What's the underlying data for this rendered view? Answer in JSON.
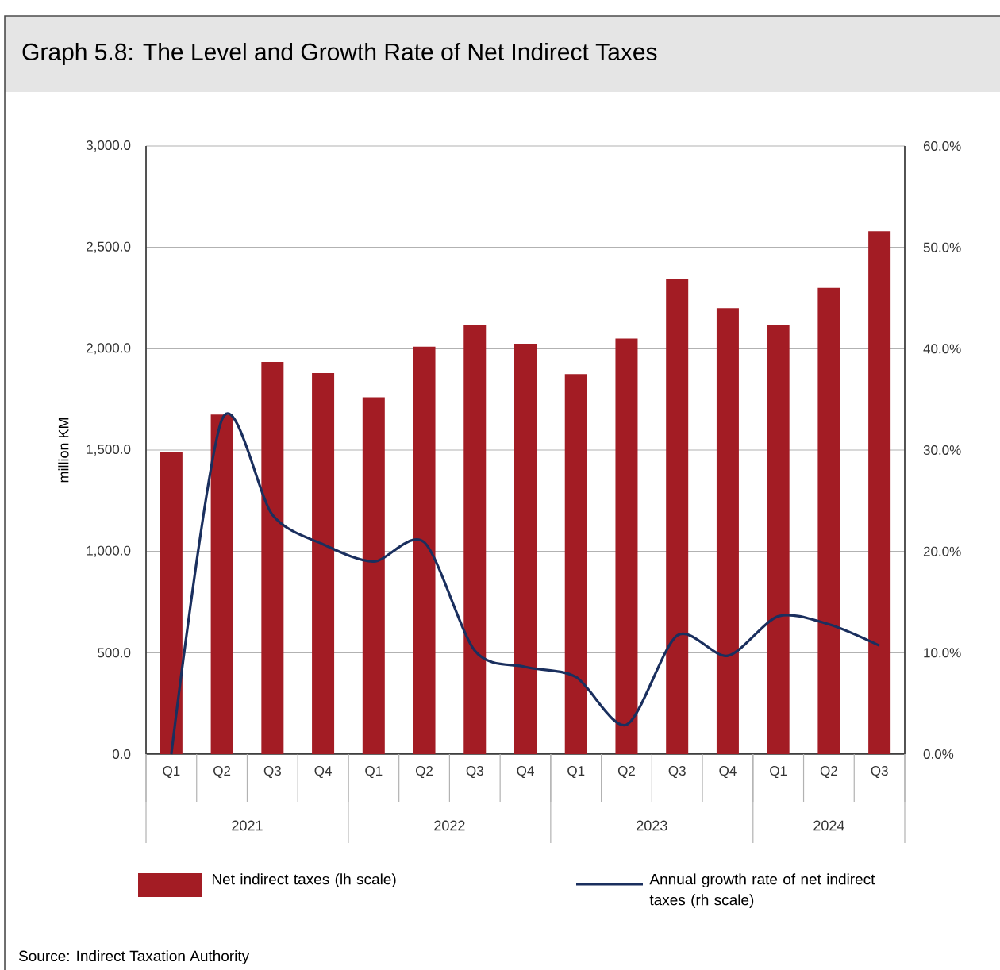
{
  "chart_data": {
    "type": "bar",
    "title": "Graph 5.8: The Level and Growth Rate of Net Indirect Taxes",
    "ylabel": "million KM",
    "categories": [
      "Q1",
      "Q2",
      "Q3",
      "Q4",
      "Q1",
      "Q2",
      "Q3",
      "Q4",
      "Q1",
      "Q2",
      "Q3",
      "Q4",
      "Q1",
      "Q2",
      "Q3"
    ],
    "series": [
      {
        "name": "Net indirect taxes (lh scale)",
        "color": "#a31c24",
        "values": [
          1490,
          1675,
          1935,
          1880,
          1760,
          2010,
          2115,
          2025,
          1875,
          2050,
          2345,
          2200,
          2115,
          2300,
          2580
        ]
      },
      {
        "name": "Annual growth rate of net indirect taxes (rh scale)",
        "type": "line",
        "axis": "y2",
        "color": "#1a2f5e",
        "values": [
          0.0,
          33.0,
          23.6,
          20.7,
          19.0,
          20.9,
          10.2,
          8.6,
          7.6,
          2.9,
          11.7,
          9.7,
          13.6,
          12.8,
          10.7
        ]
      }
    ],
    "ylim": [
      0,
      3000
    ],
    "yticks": [
      {
        "value": 0,
        "label": "0.0"
      },
      {
        "value": 500,
        "label": "500.0"
      },
      {
        "value": 1000,
        "label": "1,000.0"
      },
      {
        "value": 1500,
        "label": "1,500.0"
      },
      {
        "value": 2000,
        "label": "2,000.0"
      },
      {
        "value": 2500,
        "label": "2,500.0"
      },
      {
        "value": 3000,
        "label": "3,000.0"
      }
    ],
    "y2lim": [
      0,
      60
    ],
    "y2ticks": [
      {
        "value": 0,
        "label": "0.0%"
      },
      {
        "value": 10,
        "label": "10.0%"
      },
      {
        "value": 20,
        "label": "20.0%"
      },
      {
        "value": 30,
        "label": "30.0%"
      },
      {
        "value": 40,
        "label": "40.0%"
      },
      {
        "value": 50,
        "label": "50.0%"
      },
      {
        "value": 60,
        "label": "60.0%"
      }
    ],
    "grid": "y",
    "legend": "bottom",
    "annotations": [
      "2021",
      "2022",
      "2023",
      "2024",
      "Source: Indirect Taxation Authority"
    ]
  }
}
